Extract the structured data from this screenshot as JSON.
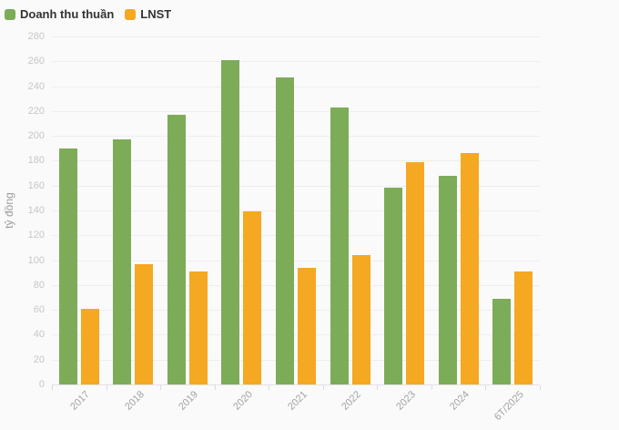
{
  "chart": {
    "background_color": "#fafafa",
    "gridline_color": "#efecf2",
    "axis_line_color": "#e4e1e6"
  },
  "chart_data": {
    "type": "bar",
    "title": "",
    "categories": [
      "2017",
      "2018",
      "2019",
      "2020",
      "2021",
      "2022",
      "2023",
      "2024",
      "6T/2025"
    ],
    "series": [
      {
        "name": "Doanh thu thuần",
        "color": "#7cac58",
        "values": [
          190,
          197,
          217,
          261,
          247,
          223,
          158,
          168,
          69
        ]
      },
      {
        "name": "LNST",
        "color": "#f5a821",
        "values": [
          61,
          97,
          91,
          139,
          94,
          104,
          179,
          186,
          91
        ]
      }
    ],
    "xlabel": "",
    "ylabel": "tỷ đồng",
    "ylim": [
      0,
      280
    ],
    "ytick_step": 20,
    "yticks": [
      0,
      20,
      40,
      60,
      80,
      100,
      120,
      140,
      160,
      180,
      200,
      220,
      240,
      260,
      280
    ],
    "grid": true,
    "legend_position": "top-left",
    "data_labels": false
  }
}
